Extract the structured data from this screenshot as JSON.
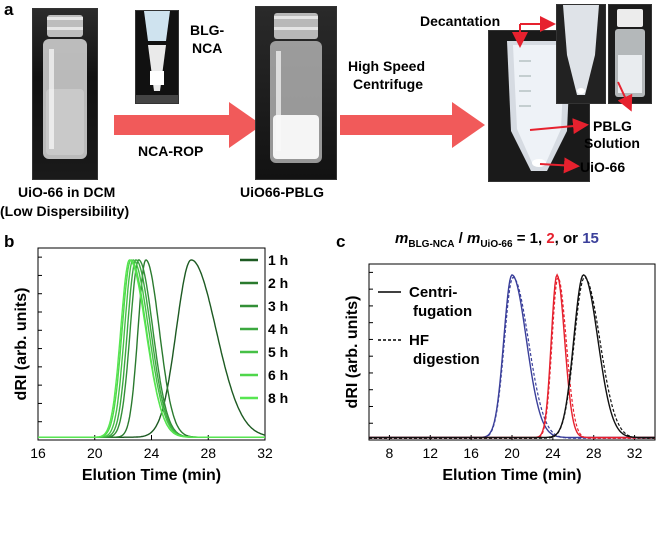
{
  "panel_a": {
    "letter": "a",
    "vial1_caption_line1": "UiO-66 in DCM",
    "vial1_caption_line2": "(Low Dispersibility)",
    "blg_label_line1": "BLG-",
    "blg_label_line2": "NCA",
    "arrow1_label": "NCA-ROP",
    "vial2_caption": "UiO66-PBLG",
    "arrow2_label_line1": "High Speed",
    "arrow2_label_line2": "Centrifuge",
    "decantation_label": "Decantation",
    "pblg_line1": "PBLG",
    "pblg_line2": "Solution",
    "uio66_label": "UiO-66",
    "arrow_color": "#f15a5a"
  },
  "panel_b": {
    "letter": "b",
    "legend_title": "",
    "xlabel": "Elution Time (min)",
    "ylabel": "dRI (arb. units)"
  },
  "panel_c": {
    "letter": "c",
    "title_m": "m",
    "title_sub1": "BLG-NCA",
    "title_slash": " / ",
    "title_m2": "m",
    "title_sub2": "UiO-66",
    "title_eq": " = 1, ",
    "title_v2": "2",
    "title_or": ", or ",
    "title_v15": "15",
    "legend_solid_line1": "Centri-",
    "legend_solid_line2": "fugation",
    "legend_dash_line1": "HF",
    "legend_dash_line2": "digestion",
    "xlabel": "Elution Time (min)",
    "ylabel": "dRI (arb. units)"
  },
  "chart_data": [
    {
      "type": "line",
      "panel": "b",
      "xlabel": "Elution Time (min)",
      "ylabel": "dRI (arb. units)",
      "xlim": [
        16,
        32
      ],
      "xticks": [
        16,
        20,
        24,
        28,
        32
      ],
      "ylim": [
        0,
        1.05
      ],
      "series": [
        {
          "name": "1 h",
          "color": "#1d5a22",
          "peak": 26.8,
          "sigmaL": 1.05,
          "sigmaR": 1.75
        },
        {
          "name": "2 h",
          "color": "#2a7a2e",
          "peak": 23.6,
          "sigmaL": 0.55,
          "sigmaR": 0.95
        },
        {
          "name": "3 h",
          "color": "#338f37",
          "peak": 23.1,
          "sigmaL": 0.6,
          "sigmaR": 1.0
        },
        {
          "name": "4 h",
          "color": "#3ca840",
          "peak": 22.9,
          "sigmaL": 0.6,
          "sigmaR": 1.05
        },
        {
          "name": "5 h",
          "color": "#46c046",
          "peak": 22.7,
          "sigmaL": 0.6,
          "sigmaR": 1.1
        },
        {
          "name": "6 h",
          "color": "#4fd64b",
          "peak": 22.55,
          "sigmaL": 0.62,
          "sigmaR": 1.1
        },
        {
          "name": "8 h",
          "color": "#57e651",
          "peak": 22.45,
          "sigmaL": 0.62,
          "sigmaR": 1.15
        }
      ]
    },
    {
      "type": "line",
      "panel": "c",
      "xlabel": "Elution Time (min)",
      "ylabel": "dRI (arb. units)",
      "xlim": [
        6,
        34
      ],
      "xticks": [
        8,
        12,
        16,
        20,
        24,
        28,
        32
      ],
      "ylim": [
        0,
        1.05
      ],
      "series": [
        {
          "name": "15",
          "color": "#3a3f9a",
          "peak": 20.0,
          "sigmaL": 0.8,
          "sigmaR": 1.4
        },
        {
          "name": "2",
          "color": "#e6212e",
          "peak": 24.4,
          "sigmaL": 0.55,
          "sigmaR": 0.75
        },
        {
          "name": "1",
          "color": "#111111",
          "peak": 27.0,
          "sigmaL": 0.95,
          "sigmaR": 1.4
        }
      ],
      "line_styles": {
        "solid": "Centri-fugation",
        "dashed": "HF digestion"
      }
    }
  ]
}
